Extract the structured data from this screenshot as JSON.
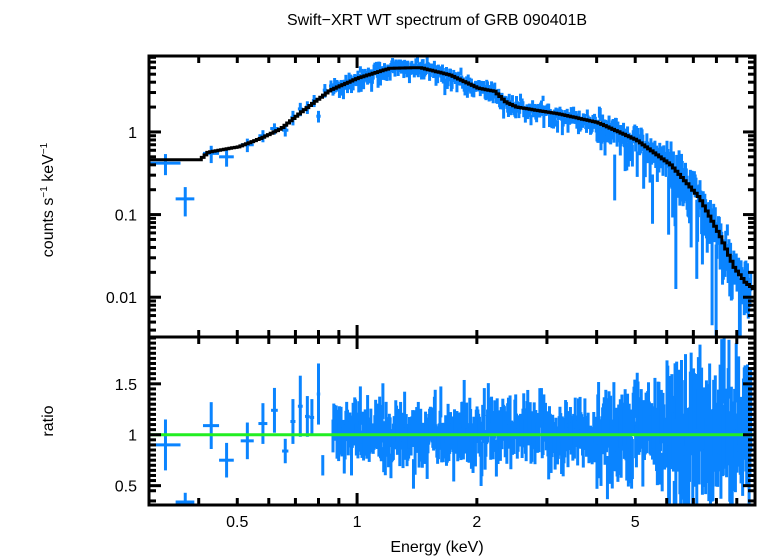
{
  "chart_data": {
    "type": "scatter",
    "title": "Swift−XRT WT spectrum of GRB 090401B",
    "xlabel": "Energy (keV)",
    "xscale": "log",
    "xlim": [
      0.3,
      10
    ],
    "xticks": [
      {
        "value": 0.5,
        "label": "0.5"
      },
      {
        "value": 1,
        "label": "1"
      },
      {
        "value": 2,
        "label": "2"
      },
      {
        "value": 5,
        "label": "5"
      }
    ],
    "colors": {
      "data": "#0a84ff",
      "model": "#000000",
      "unity": "#22ee22",
      "axes": "#000000"
    },
    "panels": [
      {
        "name": "spectrum",
        "ylabel_main": "counts s",
        "ylabel_sup1": "−1",
        "ylabel_mid": " keV",
        "ylabel_sup2": "−1",
        "yscale": "log",
        "ylim": [
          0.0033,
          8.3
        ],
        "yticks": [
          {
            "value": 0.01,
            "label": "0.01"
          },
          {
            "value": 0.1,
            "label": "0.1"
          },
          {
            "value": 1,
            "label": "1"
          }
        ],
        "model": {
          "name": "model",
          "x": [
            0.3,
            0.4,
            0.42,
            0.5,
            0.57,
            0.64,
            0.72,
            0.85,
            1.0,
            1.2,
            1.43,
            1.7,
            2.0,
            2.2,
            2.35,
            2.5,
            3.2,
            4.0,
            5.0,
            6.1,
            7.2,
            8.1,
            8.8,
            9.4,
            10
          ],
          "y": [
            0.46,
            0.46,
            0.57,
            0.66,
            0.84,
            1.1,
            1.75,
            3.2,
            4.5,
            5.9,
            6.0,
            4.9,
            3.4,
            3.1,
            2.3,
            2.0,
            1.65,
            1.3,
            0.8,
            0.4,
            0.16,
            0.056,
            0.023,
            0.015,
            0.012
          ]
        },
        "data": {
          "name": "data",
          "points": [
            {
              "x": 0.33,
              "xerr": 0.03,
              "y": 0.42,
              "yerr": 0.12
            },
            {
              "x": 0.37,
              "xerr": 0.02,
              "y": 0.155,
              "yerr": 0.06
            },
            {
              "x": 0.43,
              "xerr": 0.02,
              "y": 0.55,
              "yerr": 0.13
            },
            {
              "x": 0.47,
              "xerr": 0.02,
              "y": 0.5,
              "yerr": 0.12
            },
            {
              "x": 0.53,
              "xerr": 0.02,
              "y": 0.7,
              "yerr": 0.13
            },
            {
              "x": 0.58,
              "xerr": 0.015,
              "y": 0.9,
              "yerr": 0.15
            },
            {
              "x": 0.62,
              "xerr": 0.015,
              "y": 1.1,
              "yerr": 0.17
            },
            {
              "x": 0.66,
              "xerr": 0.012,
              "y": 1.05,
              "yerr": 0.17
            },
            {
              "x": 0.69,
              "xerr": 0.01,
              "y": 1.5,
              "yerr": 0.3
            },
            {
              "x": 0.72,
              "xerr": 0.01,
              "y": 1.9,
              "yerr": 0.35
            },
            {
              "x": 0.75,
              "xerr": 0.01,
              "y": 2.0,
              "yerr": 0.35
            },
            {
              "x": 0.78,
              "xerr": 0.01,
              "y": 2.4,
              "yerr": 0.4
            },
            {
              "x": 0.8,
              "xerr": 0.01,
              "y": 1.55,
              "yerr": 0.25
            },
            {
              "x": 0.83,
              "xerr": 0.01,
              "y": 3.2,
              "yerr": 0.6
            },
            {
              "x": 0.86,
              "xerr": 0.01,
              "y": 3.6,
              "yerr": 0.6
            }
          ],
          "noise_band": {
            "x_range": [
              0.87,
              9.8
            ],
            "note": "dense binned data following the model with ~20-40% scatter"
          }
        }
      },
      {
        "name": "ratio",
        "ylabel": "ratio",
        "yscale": "linear",
        "ylim": [
          0.31,
          1.96
        ],
        "yticks": [
          {
            "value": 0.5,
            "label": "0.5"
          },
          {
            "value": 1,
            "label": "1"
          },
          {
            "value": 1.5,
            "label": "1.5"
          }
        ],
        "unity_line": 1,
        "data": {
          "name": "ratio-data",
          "points": [
            {
              "x": 0.33,
              "xerr": 0.03,
              "y": 0.9,
              "yerr": 0.25
            },
            {
              "x": 0.37,
              "xerr": 0.02,
              "y": 0.34,
              "yerr": 0.09
            },
            {
              "x": 0.43,
              "xerr": 0.02,
              "y": 1.09,
              "yerr": 0.23
            },
            {
              "x": 0.47,
              "xerr": 0.02,
              "y": 0.75,
              "yerr": 0.17
            },
            {
              "x": 0.53,
              "xerr": 0.02,
              "y": 0.94,
              "yerr": 0.18
            },
            {
              "x": 0.58,
              "xerr": 0.015,
              "y": 1.11,
              "yerr": 0.2
            },
            {
              "x": 0.62,
              "xerr": 0.012,
              "y": 1.24,
              "yerr": 0.22
            },
            {
              "x": 0.66,
              "xerr": 0.012,
              "y": 0.84,
              "yerr": 0.12
            },
            {
              "x": 0.69,
              "xerr": 0.01,
              "y": 1.13,
              "yerr": 0.22
            },
            {
              "x": 0.72,
              "xerr": 0.01,
              "y": 1.28,
              "yerr": 0.3
            },
            {
              "x": 0.75,
              "xerr": 0.01,
              "y": 1.18,
              "yerr": 0.2
            },
            {
              "x": 0.77,
              "xerr": 0.01,
              "y": 1.17,
              "yerr": 0.18
            },
            {
              "x": 0.8,
              "xerr": 0.008,
              "y": 1.4,
              "yerr": 0.3
            },
            {
              "x": 0.82,
              "xerr": 0.005,
              "y": 0.7,
              "yerr": 0.1
            }
          ],
          "noise_band": {
            "x_range": [
              0.87,
              9.8
            ],
            "note": "dense binned ratio scatter around 1 (approx 0.6–1.6)"
          }
        }
      }
    ]
  }
}
